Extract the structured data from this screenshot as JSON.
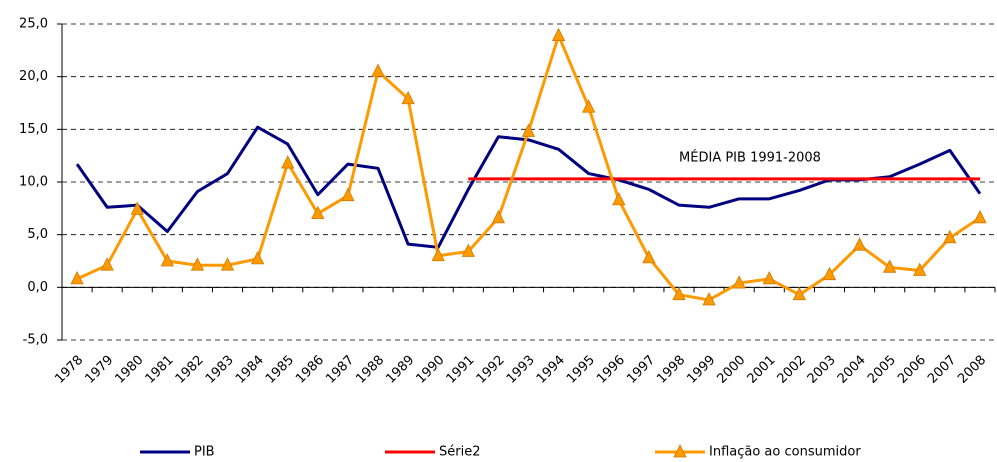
{
  "chart_data": {
    "type": "line",
    "categories": [
      "1978",
      "1979",
      "1980",
      "1981",
      "1982",
      "1983",
      "1984",
      "1985",
      "1986",
      "1987",
      "1988",
      "1989",
      "1990",
      "1991",
      "1992",
      "1993",
      "1994",
      "1995",
      "1996",
      "1997",
      "1998",
      "1999",
      "2000",
      "2001",
      "2002",
      "2003",
      "2004",
      "2005",
      "2006",
      "2007",
      "2008"
    ],
    "series": [
      {
        "name": "PIB",
        "color": "#000080",
        "values": [
          11.7,
          7.6,
          7.8,
          5.3,
          9.1,
          10.8,
          15.2,
          13.6,
          8.8,
          11.7,
          11.3,
          4.1,
          3.8,
          9.3,
          14.3,
          14.0,
          13.1,
          10.8,
          10.2,
          9.3,
          7.8,
          7.6,
          8.4,
          8.4,
          9.2,
          10.2,
          10.2,
          10.5,
          11.7,
          13.0,
          8.9
        ]
      },
      {
        "name": "Série2",
        "color": "#ff0000",
        "values": [
          null,
          null,
          null,
          null,
          null,
          null,
          null,
          null,
          null,
          null,
          null,
          null,
          null,
          10.3,
          10.3,
          10.3,
          10.3,
          10.3,
          10.3,
          10.3,
          10.3,
          10.3,
          10.3,
          10.3,
          10.3,
          10.3,
          10.3,
          10.3,
          10.3,
          10.3,
          10.3
        ]
      },
      {
        "name": "Inflação ao consumidor",
        "color": "#ff9900",
        "marker": "triangle",
        "values": [
          0.8,
          2.1,
          7.4,
          2.5,
          2.1,
          2.1,
          2.7,
          11.8,
          7.0,
          8.7,
          20.5,
          17.9,
          3.0,
          3.4,
          6.6,
          14.8,
          23.9,
          17.1,
          8.3,
          2.8,
          -0.7,
          -1.2,
          0.4,
          0.8,
          -0.7,
          1.2,
          4.0,
          1.9,
          1.6,
          4.7,
          6.6
        ]
      }
    ],
    "annotation": "MÉDIA PIB 1991-2008",
    "ylim": [
      -5,
      25
    ],
    "yticks": [
      {
        "value": -5,
        "label": "-5,0"
      },
      {
        "value": 0,
        "label": "0,0"
      },
      {
        "value": 5,
        "label": "5,0"
      },
      {
        "value": 10,
        "label": "10,0"
      },
      {
        "value": 15,
        "label": "15,0"
      },
      {
        "value": 20,
        "label": "20,0"
      },
      {
        "value": 25,
        "label": "25,0"
      }
    ],
    "grid": true,
    "legend": "bottom"
  }
}
